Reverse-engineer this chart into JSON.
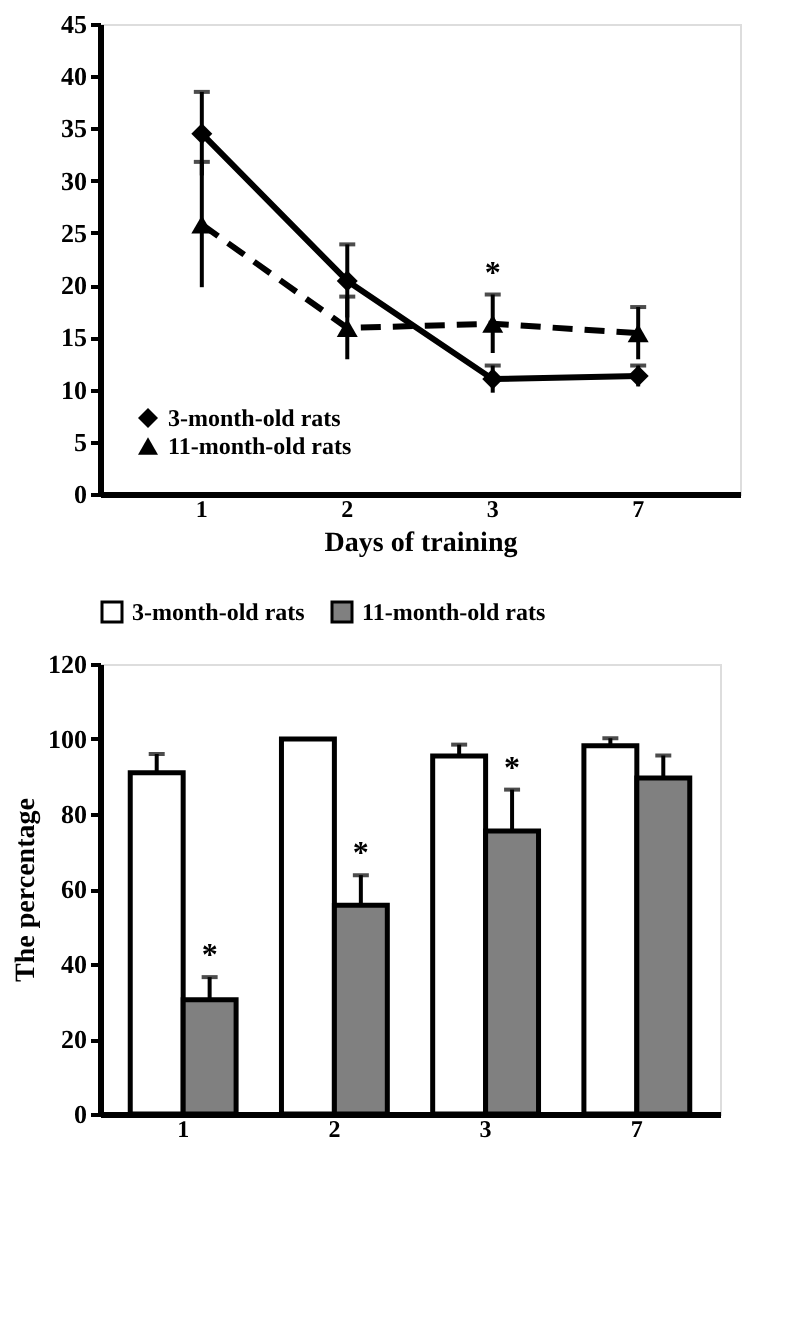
{
  "chart_data": [
    {
      "type": "line",
      "xlabel": "Days of training",
      "categories": [
        "1",
        "2",
        "3",
        "7"
      ],
      "series": [
        {
          "name": "3-month-old rats",
          "color": "#000000",
          "marker": "diamond",
          "line_style": "solid",
          "values": [
            34.5,
            20.4,
            11,
            11.3
          ],
          "errors": [
            4,
            3.5,
            1.3,
            1
          ]
        },
        {
          "name": "11-month-old rats",
          "color": "#000000",
          "marker": "triangle",
          "line_style": "dashed",
          "values": [
            25.8,
            15.9,
            16.3,
            15.4
          ],
          "errors": [
            6,
            3,
            2.8,
            2.5
          ]
        }
      ],
      "ylim": [
        0,
        45
      ],
      "yticks": [
        0,
        5,
        10,
        15,
        20,
        25,
        30,
        35,
        40,
        45
      ],
      "grid": false,
      "legend": "bottom left",
      "annotations": [
        {
          "text": "*",
          "x": "3",
          "y": 16.3
        }
      ]
    },
    {
      "type": "bar",
      "ylabel": "The percentage",
      "categories": [
        "1",
        "2",
        "3",
        "7"
      ],
      "series": [
        {
          "name": "3-month-old rats",
          "color": "#ffffff",
          "values": [
            91,
            100,
            95.5,
            98.2
          ],
          "errors": [
            5,
            null,
            3,
            2
          ]
        },
        {
          "name": "11-month-old rats",
          "color": "#808080",
          "values": [
            30.5,
            55.7,
            75.5,
            89.6
          ],
          "errors": [
            6,
            8,
            11,
            6
          ]
        }
      ],
      "ylim": [
        0,
        120
      ],
      "yticks": [
        0,
        20,
        40,
        60,
        80,
        100,
        120
      ],
      "grid": false,
      "legend": "top",
      "annotations": [
        {
          "text": "*",
          "x": "1",
          "y": 30.5
        },
        {
          "text": "*",
          "x": "2",
          "y": 55.7
        },
        {
          "text": "*",
          "x": "3",
          "y": 75.5
        }
      ]
    }
  ]
}
